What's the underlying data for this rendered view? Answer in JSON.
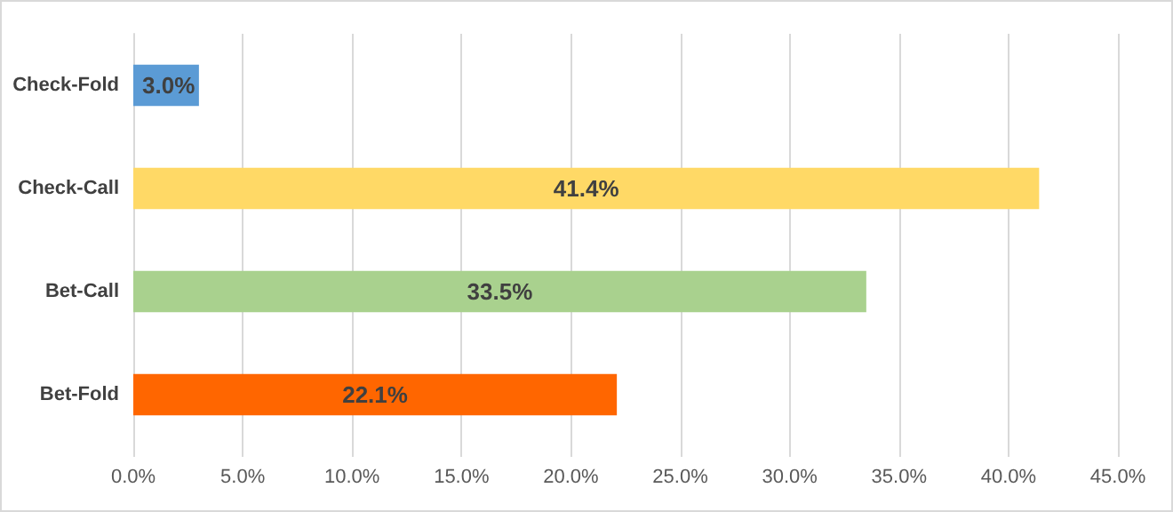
{
  "chart_data": {
    "type": "bar",
    "orientation": "horizontal",
    "categories": [
      "Check-Fold",
      "Check-Call",
      "Bet-Call",
      "Bet-Fold"
    ],
    "values": [
      3.0,
      41.4,
      33.5,
      22.1
    ],
    "colors": [
      "#5b9bd5",
      "#ffd966",
      "#a9d18e",
      "#ff6600"
    ],
    "value_labels": [
      "3.0%",
      "41.4%",
      "33.5%",
      "22.1%"
    ],
    "xlim": [
      0,
      45
    ],
    "xticks": [
      {
        "value": 0,
        "label": "0.0%"
      },
      {
        "value": 5,
        "label": "5.0%"
      },
      {
        "value": 10,
        "label": "10.0%"
      },
      {
        "value": 15,
        "label": "15.0%"
      },
      {
        "value": 20,
        "label": "20.0%"
      },
      {
        "value": 25,
        "label": "25.0%"
      },
      {
        "value": 30,
        "label": "30.0%"
      },
      {
        "value": 35,
        "label": "35.0%"
      },
      {
        "value": 40,
        "label": "40.0%"
      },
      {
        "value": 45,
        "label": "45.0%"
      }
    ],
    "grid": "x"
  }
}
